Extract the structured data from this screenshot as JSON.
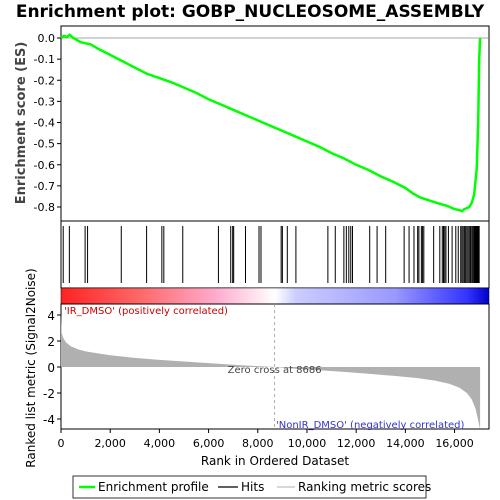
{
  "chart_data": {
    "type": "line",
    "title": "Enrichment plot: GOBP_NUCLEOSOME_ASSEMBLY",
    "top_panel": {
      "ylabel": "Enrichment score (ES)",
      "ylim": [
        -0.88,
        0.05
      ],
      "yticks": [
        0.0,
        -0.1,
        -0.2,
        -0.3,
        -0.4,
        -0.5,
        -0.6,
        -0.7,
        -0.8
      ],
      "ytick_labels": [
        "0.0",
        "-0.1",
        "-0.2",
        "-0.3",
        "-0.4",
        "-0.5",
        "-0.6",
        "-0.7",
        "-0.8"
      ],
      "series": [
        {
          "name": "Enrichment profile",
          "color": "#00ff00",
          "x": [
            0,
            120,
            250,
            350,
            500,
            650,
            800,
            1000,
            1200,
            1500,
            2000,
            2500,
            3000,
            3500,
            4000,
            4500,
            5000,
            5500,
            6000,
            6500,
            7000,
            7500,
            8000,
            8500,
            9000,
            9500,
            10000,
            10500,
            11000,
            11500,
            12000,
            12500,
            13000,
            13500,
            14000,
            14300,
            14600,
            15000,
            15400,
            15700,
            16000,
            16200,
            16300,
            16400,
            16500,
            16600,
            16700,
            16800,
            16900,
            16960,
            17000,
            17040
          ],
          "y": [
            0.0,
            0.01,
            0.005,
            0.015,
            0.0,
            -0.01,
            -0.02,
            -0.025,
            -0.03,
            -0.05,
            -0.08,
            -0.11,
            -0.14,
            -0.17,
            -0.19,
            -0.21,
            -0.235,
            -0.26,
            -0.29,
            -0.315,
            -0.34,
            -0.365,
            -0.39,
            -0.415,
            -0.44,
            -0.465,
            -0.49,
            -0.515,
            -0.545,
            -0.57,
            -0.6,
            -0.625,
            -0.655,
            -0.68,
            -0.71,
            -0.735,
            -0.755,
            -0.77,
            -0.785,
            -0.795,
            -0.81,
            -0.815,
            -0.82,
            -0.81,
            -0.805,
            -0.8,
            -0.78,
            -0.74,
            -0.62,
            -0.4,
            -0.1,
            0.0
          ]
        }
      ]
    },
    "hits": [
      90,
      340,
      980,
      1080,
      2450,
      3480,
      4100,
      4180,
      4950,
      6400,
      6900,
      6980,
      7020,
      7500,
      8050,
      8130,
      8950,
      9000,
      9200,
      9550,
      10850,
      11150,
      11500,
      11600,
      11700,
      11780,
      11850,
      12550,
      12850,
      13200,
      13950,
      14150,
      14350,
      14500,
      14550,
      14650,
      14700,
      14750,
      15150,
      15400,
      15500,
      15550,
      15600,
      15650,
      15750,
      15900,
      16050,
      16150,
      16250,
      16300,
      16350,
      16400,
      16450,
      16500,
      16550,
      16600,
      16650,
      16700,
      16720,
      16760,
      16800,
      16830,
      16860,
      16880,
      16900,
      16920,
      16940,
      16960,
      16980,
      17000
    ],
    "bottom_panel": {
      "ylabel": "Ranked list metric (Signal2Noise)",
      "ylim": [
        -5,
        5
      ],
      "yticks": [
        4,
        2,
        0,
        -2,
        -4
      ],
      "ytick_labels": [
        "4",
        "2",
        "0",
        "-2",
        "-4"
      ],
      "metric_x": [
        0,
        30,
        100,
        200,
        400,
        700,
        1000,
        1500,
        2000,
        3000,
        4000,
        5000,
        6000,
        7000,
        8000,
        8686,
        9500,
        10500,
        11500,
        12500,
        13500,
        14500,
        15200,
        15800,
        16200,
        16500,
        16700,
        16850,
        16950,
        17040
      ],
      "metric_y": [
        4.0,
        2.6,
        2.2,
        1.9,
        1.6,
        1.35,
        1.2,
        1.05,
        0.9,
        0.7,
        0.55,
        0.42,
        0.3,
        0.18,
        0.07,
        0.0,
        -0.12,
        -0.25,
        -0.38,
        -0.52,
        -0.68,
        -0.85,
        -1.05,
        -1.3,
        -1.6,
        -2.0,
        -2.5,
        -3.2,
        -4.0,
        -4.8
      ],
      "zero_cross_label": "Zero cross at 8686",
      "zero_cross_x": 8686,
      "pos_label": "'IR_DMSO' (positively correlated)",
      "neg_label": "'NonIR_DMSO' (negatively correlated)"
    },
    "xlabel": "Rank in Ordered Dataset",
    "xlim": [
      0,
      17400
    ],
    "xticks": [
      0,
      2000,
      4000,
      6000,
      8000,
      10000,
      12000,
      14000,
      16000
    ],
    "xtick_labels": [
      "0",
      "2,000",
      "4,000",
      "6,000",
      "8,000",
      "10,000",
      "12,000",
      "14,000",
      "16,000"
    ],
    "legend": {
      "placement": "bottom",
      "items": [
        {
          "label": "Enrichment profile",
          "color": "#00ff00"
        },
        {
          "label": "Hits",
          "color": "#000000"
        },
        {
          "label": "Ranking metric scores",
          "color": "#c0c0c0"
        }
      ]
    },
    "colors": {
      "positive": "#ff0000",
      "negative": "#0000ff",
      "metric_fill": "#b0b0b0",
      "pos_label": "#cc0000",
      "neg_label": "#3333cc",
      "zero_line": "#999999"
    }
  }
}
